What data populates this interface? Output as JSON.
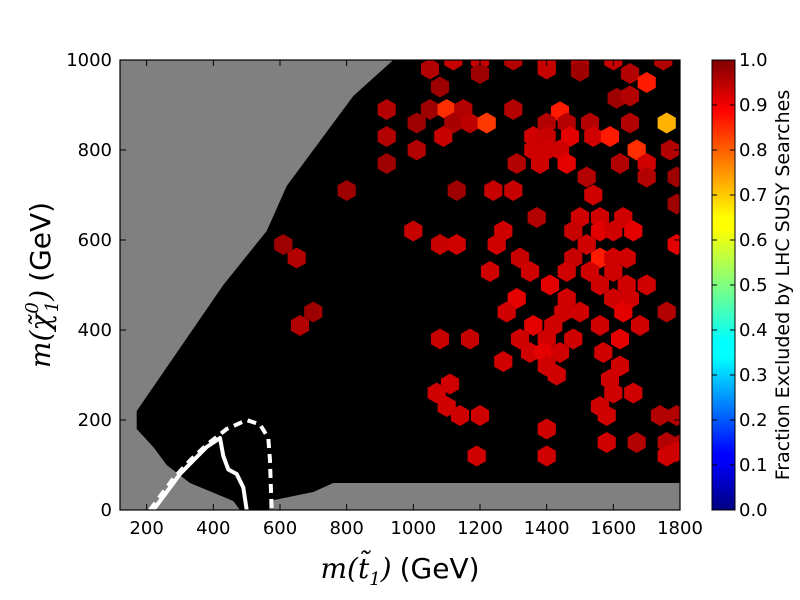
{
  "chart_data": {
    "type": "heatmap",
    "subtype": "hexbin",
    "xlabel_math": "m(t̃",
    "xlabel_sub": "1",
    "xlabel_close": ")",
    "xlabel_unit": "(GeV)",
    "ylabel_math": "m(χ̃",
    "ylabel_sup": "0",
    "ylabel_sub": "1",
    "ylabel_close": ")",
    "ylabel_unit": "(GeV)",
    "colorbar_label": "Fraction Excluded by LHC SUSY Searches",
    "xlim": [
      120,
      1800
    ],
    "ylim": [
      0,
      1000
    ],
    "x_ticks": [
      200,
      400,
      600,
      800,
      1000,
      1200,
      1400,
      1600,
      1800
    ],
    "y_ticks": [
      0,
      200,
      400,
      600,
      800,
      1000
    ],
    "x_tick_labels": [
      "200",
      "400",
      "600",
      "800",
      "1000",
      "1200",
      "1400",
      "1600",
      "1800"
    ],
    "y_tick_labels": [
      "0",
      "200",
      "400",
      "600",
      "800",
      "1000"
    ],
    "colorbar_ticks": [
      "0.0",
      "0.1",
      "0.2",
      "0.3",
      "0.4",
      "0.5",
      "0.6",
      "0.7",
      "0.8",
      "0.9",
      "1.0"
    ],
    "colorbar_range": [
      0,
      1.0
    ],
    "colormap": "jet",
    "background_color": "#808080",
    "zero_fraction_color": "#000000",
    "hex_centers_y_gev": [
      20,
      60,
      100,
      140,
      180,
      220,
      260,
      300,
      340,
      380,
      420,
      460,
      500,
      540,
      580,
      620,
      660,
      700,
      740,
      780,
      820,
      860,
      900,
      940,
      980
    ],
    "hex_spacing_x_gev": 56,
    "filled_region_boundary": [
      [
        568,
        0
      ],
      [
        568,
        20
      ],
      [
        700,
        40
      ],
      [
        760,
        60
      ],
      [
        1800,
        60
      ],
      [
        1800,
        1000
      ],
      [
        940,
        1000
      ],
      [
        820,
        920
      ],
      [
        700,
        800
      ],
      [
        620,
        720
      ],
      [
        560,
        620
      ],
      [
        430,
        500
      ],
      [
        300,
        360
      ],
      [
        170,
        220
      ],
      [
        170,
        180
      ],
      [
        220,
        140
      ],
      [
        260,
        100
      ],
      [
        330,
        60
      ],
      [
        460,
        20
      ],
      [
        480,
        0
      ]
    ],
    "hot_cells": [
      [
        1050,
        980,
        0.95
      ],
      [
        1120,
        1000,
        0.93
      ],
      [
        1200,
        1000,
        0.93
      ],
      [
        1300,
        1000,
        0.95
      ],
      [
        1400,
        1000,
        0.93
      ],
      [
        1500,
        1000,
        0.95
      ],
      [
        1600,
        1000,
        0.93
      ],
      [
        1750,
        1000,
        0.95
      ],
      [
        1400,
        980,
        0.93
      ],
      [
        1500,
        975,
        0.97
      ],
      [
        1650,
        970,
        0.95
      ],
      [
        1200,
        970,
        0.97
      ],
      [
        1080,
        940,
        0.97
      ],
      [
        1700,
        950,
        0.85
      ],
      [
        920,
        890,
        0.95
      ],
      [
        1050,
        890,
        0.97
      ],
      [
        1100,
        890,
        0.83
      ],
      [
        1150,
        890,
        0.95
      ],
      [
        1300,
        890,
        0.95
      ],
      [
        1440,
        885,
        0.85
      ],
      [
        1610,
        915,
        0.97
      ],
      [
        1650,
        920,
        0.95
      ],
      [
        1010,
        860,
        0.97
      ],
      [
        1120,
        860,
        0.96
      ],
      [
        1170,
        860,
        0.94
      ],
      [
        1220,
        860,
        0.82
      ],
      [
        1400,
        860,
        0.95
      ],
      [
        1460,
        860,
        0.95
      ],
      [
        1530,
        860,
        0.95
      ],
      [
        1650,
        860,
        0.95
      ],
      [
        1760,
        860,
        0.7
      ],
      [
        920,
        830,
        0.95
      ],
      [
        1090,
        830,
        0.93
      ],
      [
        1360,
        830,
        0.92
      ],
      [
        1400,
        830,
        0.93
      ],
      [
        1470,
        830,
        0.9
      ],
      [
        1540,
        830,
        0.92
      ],
      [
        1590,
        830,
        0.85
      ],
      [
        1010,
        800,
        0.95
      ],
      [
        1360,
        800,
        0.92
      ],
      [
        1400,
        800,
        0.92
      ],
      [
        1440,
        800,
        0.92
      ],
      [
        1670,
        800,
        0.83
      ],
      [
        1770,
        800,
        0.95
      ],
      [
        920,
        770,
        0.97
      ],
      [
        1310,
        770,
        0.95
      ],
      [
        1380,
        770,
        0.92
      ],
      [
        1460,
        770,
        0.9
      ],
      [
        1620,
        770,
        0.95
      ],
      [
        1700,
        770,
        0.92
      ],
      [
        1520,
        740,
        0.95
      ],
      [
        1700,
        740,
        0.95
      ],
      [
        1790,
        740,
        0.97
      ],
      [
        800,
        710,
        0.97
      ],
      [
        1130,
        710,
        0.97
      ],
      [
        1240,
        710,
        0.93
      ],
      [
        1300,
        710,
        0.93
      ],
      [
        1540,
        700,
        0.92
      ],
      [
        1790,
        680,
        0.97
      ],
      [
        1370,
        650,
        0.95
      ],
      [
        1500,
        650,
        0.92
      ],
      [
        1560,
        650,
        0.92
      ],
      [
        1630,
        650,
        0.92
      ],
      [
        1000,
        620,
        0.93
      ],
      [
        1270,
        620,
        0.92
      ],
      [
        1480,
        620,
        0.93
      ],
      [
        1560,
        620,
        0.9
      ],
      [
        1600,
        620,
        0.92
      ],
      [
        1660,
        620,
        0.9
      ],
      [
        1080,
        590,
        0.93
      ],
      [
        1130,
        590,
        0.92
      ],
      [
        1250,
        590,
        0.92
      ],
      [
        1520,
        590,
        0.92
      ],
      [
        1790,
        590,
        0.9
      ],
      [
        610,
        590,
        0.97
      ],
      [
        650,
        560,
        0.95
      ],
      [
        1320,
        560,
        0.93
      ],
      [
        1480,
        560,
        0.93
      ],
      [
        1560,
        560,
        0.85
      ],
      [
        1600,
        560,
        0.92
      ],
      [
        1640,
        560,
        0.92
      ],
      [
        1230,
        530,
        0.92
      ],
      [
        1350,
        530,
        0.92
      ],
      [
        1460,
        530,
        0.92
      ],
      [
        1530,
        530,
        0.92
      ],
      [
        1600,
        530,
        0.92
      ],
      [
        1410,
        500,
        0.9
      ],
      [
        1560,
        500,
        0.92
      ],
      [
        1640,
        500,
        0.92
      ],
      [
        1700,
        500,
        0.92
      ],
      [
        1310,
        470,
        0.9
      ],
      [
        1460,
        470,
        0.92
      ],
      [
        1600,
        470,
        0.92
      ],
      [
        1650,
        470,
        0.92
      ],
      [
        700,
        440,
        0.97
      ],
      [
        1280,
        440,
        0.92
      ],
      [
        1450,
        440,
        0.92
      ],
      [
        1500,
        440,
        0.92
      ],
      [
        1630,
        440,
        0.9
      ],
      [
        1760,
        440,
        0.95
      ],
      [
        660,
        410,
        0.95
      ],
      [
        1360,
        410,
        0.9
      ],
      [
        1420,
        410,
        0.92
      ],
      [
        1560,
        410,
        0.92
      ],
      [
        1680,
        410,
        0.92
      ],
      [
        1080,
        380,
        0.93
      ],
      [
        1170,
        380,
        0.93
      ],
      [
        1320,
        380,
        0.92
      ],
      [
        1400,
        380,
        0.92
      ],
      [
        1480,
        380,
        0.92
      ],
      [
        1620,
        380,
        0.9
      ],
      [
        1350,
        350,
        0.92
      ],
      [
        1390,
        350,
        0.9
      ],
      [
        1440,
        350,
        0.92
      ],
      [
        1570,
        350,
        0.92
      ],
      [
        1270,
        330,
        0.92
      ],
      [
        1400,
        320,
        0.92
      ],
      [
        1620,
        320,
        0.92
      ],
      [
        1110,
        280,
        0.92
      ],
      [
        1430,
        300,
        0.92
      ],
      [
        1590,
        290,
        0.92
      ],
      [
        1070,
        260,
        0.92
      ],
      [
        1600,
        260,
        0.92
      ],
      [
        1660,
        260,
        0.92
      ],
      [
        1100,
        230,
        0.92
      ],
      [
        1560,
        230,
        0.92
      ],
      [
        1140,
        210,
        0.92
      ],
      [
        1200,
        210,
        0.92
      ],
      [
        1580,
        210,
        0.92
      ],
      [
        1740,
        210,
        0.95
      ],
      [
        1790,
        210,
        0.95
      ],
      [
        1400,
        180,
        0.92
      ],
      [
        1580,
        150,
        0.92
      ],
      [
        1670,
        150,
        0.95
      ],
      [
        1760,
        150,
        0.95
      ],
      [
        1810,
        150,
        0.95
      ],
      [
        1190,
        120,
        0.92
      ],
      [
        1400,
        120,
        0.92
      ],
      [
        1760,
        120,
        0.92
      ],
      [
        1790,
        130,
        0.92
      ]
    ],
    "contours": [
      {
        "style": "solid",
        "color": "#ffffff",
        "points": [
          [
            220,
            0
          ],
          [
            260,
            40
          ],
          [
            300,
            80
          ],
          [
            340,
            110
          ],
          [
            380,
            140
          ],
          [
            420,
            160
          ],
          [
            430,
            120
          ],
          [
            445,
            90
          ],
          [
            470,
            80
          ],
          [
            490,
            50
          ],
          [
            500,
            0
          ]
        ]
      },
      {
        "style": "dashed",
        "color": "#ffffff",
        "points": [
          [
            210,
            0
          ],
          [
            240,
            30
          ],
          [
            280,
            70
          ],
          [
            330,
            110
          ],
          [
            380,
            145
          ],
          [
            440,
            180
          ],
          [
            500,
            200
          ],
          [
            540,
            190
          ],
          [
            565,
            160
          ],
          [
            570,
            110
          ],
          [
            572,
            60
          ],
          [
            575,
            0
          ]
        ]
      }
    ]
  }
}
